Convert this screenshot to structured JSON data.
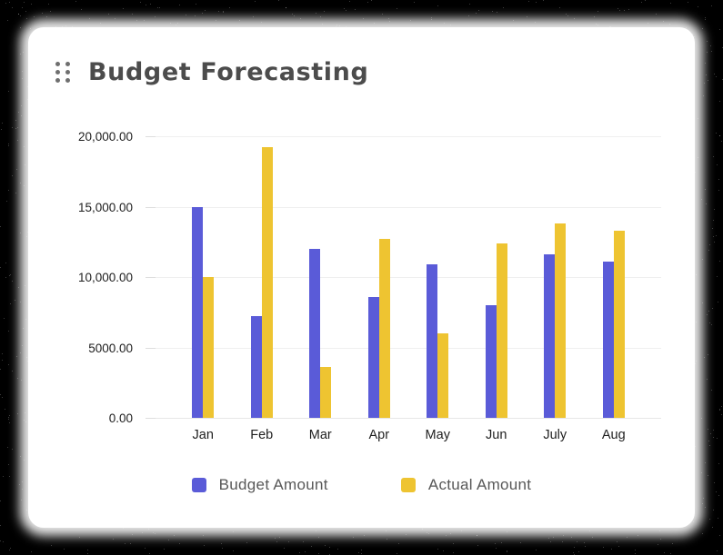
{
  "card": {
    "title": "Budget Forecasting",
    "background": "#ffffff",
    "border_style": "black-speckle-noise"
  },
  "icons": {
    "drag_handle": "six-dots-grab-handle"
  },
  "chart_data": {
    "type": "bar",
    "title": "Budget Forecasting",
    "categories": [
      "Jan",
      "Feb",
      "Mar",
      "Apr",
      "May",
      "Jun",
      "July",
      "Aug"
    ],
    "series": [
      {
        "name": "Budget Amount",
        "color": "#5A5BD8",
        "values": [
          15000,
          7200,
          12000,
          8600,
          10900,
          8000,
          11600,
          11100
        ]
      },
      {
        "name": "Actual Amount",
        "color": "#EEC431",
        "values": [
          10000,
          19200,
          3600,
          12700,
          6000,
          12400,
          13800,
          13300
        ]
      }
    ],
    "xlabel": "",
    "ylabel": "",
    "ylim": [
      0,
      20000
    ],
    "y_ticks": [
      0,
      5000,
      10000,
      15000,
      20000
    ],
    "y_tick_labels": [
      "0.00",
      "5000.00",
      "10,000.00",
      "15,000.00",
      "20,000.00"
    ],
    "grid": "horizontal",
    "gridline_color": "#efefef",
    "axis_label_color": "#1e1e1e",
    "legend_position": "bottom"
  }
}
